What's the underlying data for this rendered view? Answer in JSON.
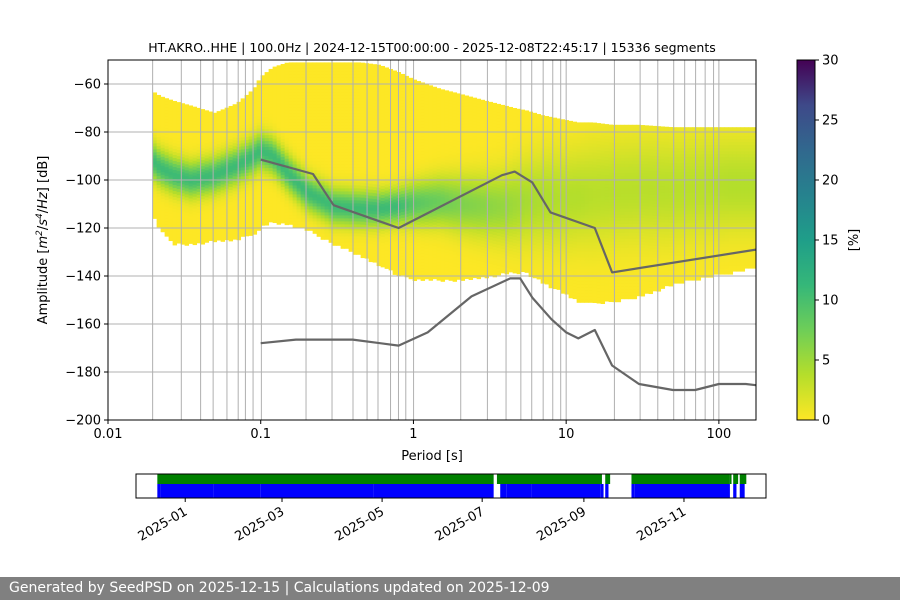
{
  "chart_data": {
    "type": "heatmap",
    "title": "HT.AKRO..HHE | 100.0Hz | 2024-12-15T00:00:00 - 2025-12-08T22:45:17 | 15336 segments",
    "xlabel": "Period [s]",
    "ylabel_parts": [
      "Amplitude [",
      "m",
      "2",
      "/",
      "s",
      "4",
      "/",
      "Hz",
      "] [dB]"
    ],
    "xscale": "log",
    "xlim": [
      0.01,
      175
    ],
    "ylim": [
      -200,
      -50
    ],
    "x_ticks": [
      0.01,
      0.1,
      1,
      10,
      100
    ],
    "x_tick_labels": [
      "0.01",
      "0.1",
      "1",
      "10",
      "100"
    ],
    "y_ticks": [
      -200,
      -180,
      -160,
      -140,
      -120,
      -100,
      -80,
      -60
    ],
    "y_tick_labels": [
      "−200",
      "−180",
      "−160",
      "−140",
      "−120",
      "−100",
      "−80",
      "−60"
    ],
    "grid": true,
    "period_grid_lines": [
      0.0196,
      0.0302,
      0.0404,
      0.0488,
      0.0601,
      0.0712,
      0.0794,
      0.0891,
      0.101,
      0.198,
      0.293,
      0.402,
      0.497,
      0.586,
      0.708,
      0.798,
      0.891,
      1.002,
      2.04,
      3.05,
      4.04,
      5.05,
      5.95,
      7.07,
      8.17,
      9.21,
      10.0,
      20.7,
      30.5,
      39.8,
      50.6,
      59.7,
      70.4,
      81.3,
      92.3,
      100.0
    ],
    "colorbar": {
      "label": "[%]",
      "range": [
        0,
        30
      ],
      "ticks": [
        0,
        5,
        10,
        15,
        20,
        25,
        30
      ],
      "tick_labels": [
        "0",
        "5",
        "10",
        "15",
        "20",
        "25",
        "30"
      ],
      "colormap": "viridis_r"
    },
    "psd_envelope": {
      "periods": [
        0.0196,
        0.022,
        0.027,
        0.035,
        0.05,
        0.07,
        0.09,
        0.1,
        0.12,
        0.15,
        0.2,
        0.3,
        0.45,
        0.6,
        0.8,
        1.0,
        1.5,
        2.0,
        3.0,
        4.0,
        4.6,
        5.5,
        7.0,
        10.0,
        12.0,
        15.0,
        20.0,
        30.0,
        50.0,
        80.0,
        120.0,
        175.0
      ],
      "upper": [
        -63,
        -65,
        -67,
        -69,
        -72,
        -68,
        -62,
        -57,
        -53,
        -51,
        -51,
        -51,
        -51,
        -52,
        -55,
        -58,
        -62,
        -64,
        -67,
        -69,
        -70,
        -71,
        -73,
        -75,
        -76,
        -76,
        -77,
        -77,
        -78,
        -78,
        -78,
        -78
      ],
      "lower": [
        -114,
        -120,
        -126,
        -126,
        -125,
        -124,
        -122,
        -119,
        -117,
        -118,
        -120,
        -126,
        -131,
        -135,
        -139,
        -141,
        -141,
        -141,
        -140,
        -138,
        -138,
        -138,
        -142,
        -147,
        -150,
        -151,
        -150,
        -148,
        -143,
        -140,
        -138,
        -136
      ],
      "mode": [
        -92,
        -95,
        -98,
        -100,
        -98,
        -94,
        -90,
        -88,
        -90,
        -97,
        -105,
        -111,
        -112,
        -112,
        -111,
        -110,
        -109,
        -110,
        -111,
        -111,
        -110,
        -109,
        -108,
        -108,
        -107,
        -106,
        -105,
        -104,
        -104,
        -103,
        -102,
        -102
      ],
      "spread": [
        5,
        5,
        5,
        5,
        5,
        5,
        5,
        5,
        5,
        5,
        5,
        5,
        5,
        5,
        5,
        6,
        7,
        8,
        9,
        10,
        11,
        12,
        13,
        14,
        14,
        15,
        15,
        15,
        15,
        15,
        14,
        14
      ]
    },
    "series": [
      {
        "x": [
          0.1,
          0.22,
          0.3,
          0.8,
          3.8,
          4.6,
          6.0,
          7.9,
          15.4,
          20.0,
          175.0
        ],
        "y": [
          -91.5,
          -97.5,
          -110.5,
          -120,
          -98,
          -96.5,
          -101,
          -113.5,
          -120,
          -138.5,
          -129
        ]
      },
      {
        "x": [
          0.1,
          0.17,
          0.4,
          0.8,
          1.24,
          2.4,
          4.3,
          5.0,
          6.0,
          8.0,
          10.0,
          12.0,
          15.4,
          20.0,
          30.0,
          50.0,
          70.0,
          100.0,
          150.0,
          175.0
        ],
        "y": [
          -168,
          -166.5,
          -166.5,
          -169,
          -163.5,
          -148.5,
          -141,
          -141,
          -149,
          -158,
          -163.5,
          -166,
          -162.5,
          -177.3,
          -185,
          -187.5,
          -187.5,
          -185,
          -185,
          -185.5
        ]
      }
    ],
    "line_color": "#666666"
  },
  "data_availability": {
    "date_ticks": [
      "2025-01-01",
      "2025-03-01",
      "2025-05-01",
      "2025-07-01",
      "2025-09-01",
      "2025-11-01"
    ],
    "date_tick_labels": [
      "2025-01",
      "2025-03",
      "2025-05",
      "2025-07",
      "2025-09",
      "2025-11"
    ],
    "range": [
      "2024-12-02",
      "2025-12-21"
    ],
    "availability_periods": [
      [
        "2024-12-15",
        "2025-07-07"
      ],
      [
        "2025-07-10",
        "2025-09-11"
      ],
      [
        "2025-09-14",
        "2025-09-16"
      ],
      [
        "2025-09-30",
        "2025-11-28"
      ],
      [
        "2025-11-29",
        "2025-11-29"
      ],
      [
        "2025-12-01",
        "2025-12-03"
      ],
      [
        "2025-12-05",
        "2025-12-08"
      ]
    ],
    "processed_periods": [
      [
        "2024-12-15",
        "2024-12-16"
      ],
      [
        "2024-12-17",
        "2025-01-17"
      ],
      [
        "2025-01-18",
        "2025-02-15"
      ],
      [
        "2025-02-16",
        "2025-04-25"
      ],
      [
        "2025-04-26",
        "2025-07-07"
      ],
      [
        "2025-07-12",
        "2025-07-15"
      ],
      [
        "2025-07-16",
        "2025-07-30"
      ],
      [
        "2025-07-31",
        "2025-09-10"
      ],
      [
        "2025-09-11",
        "2025-09-12"
      ],
      [
        "2025-09-14",
        "2025-09-15"
      ],
      [
        "2025-09-30",
        "2025-10-01"
      ],
      [
        "2025-10-02",
        "2025-11-18"
      ],
      [
        "2025-11-19",
        "2025-11-28"
      ],
      [
        "2025-12-01",
        "2025-12-02"
      ],
      [
        "2025-12-05",
        "2025-12-07"
      ]
    ],
    "availability_color": "#008000",
    "processed_color": "#0000ff"
  },
  "footer": {
    "text": "Generated by SeedPSD on 2025-12-15 | Calculations updated on 2025-12-09"
  }
}
